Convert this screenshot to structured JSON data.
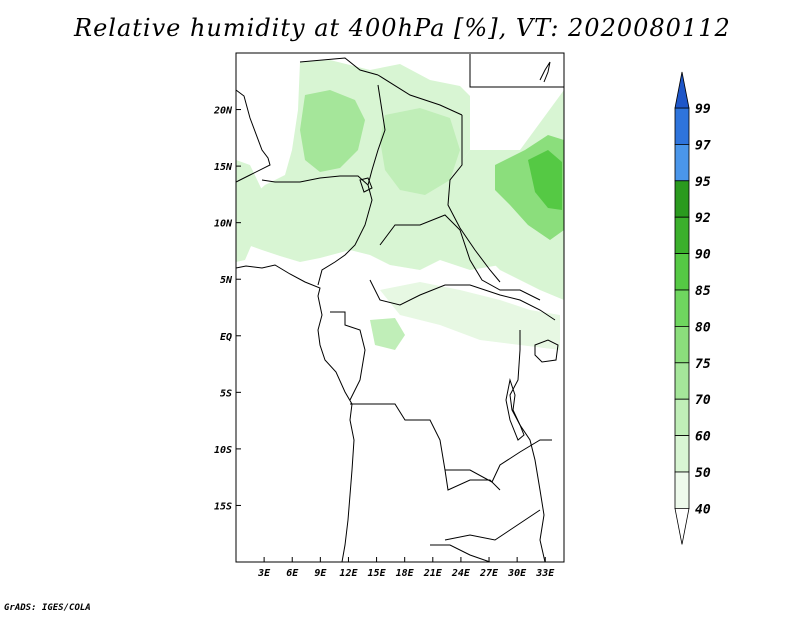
{
  "title": "Relative humidity at 400hPa [%], VT: 2020080112",
  "credit": "GrADS: IGES/COLA",
  "map": {
    "lon_ticks": [
      "3E",
      "6E",
      "9E",
      "12E",
      "15E",
      "18E",
      "21E",
      "24E",
      "27E",
      "30E",
      "33E"
    ],
    "lat_ticks": [
      "20N",
      "15N",
      "10N",
      "5N",
      "EQ",
      "5S",
      "10S",
      "15S"
    ],
    "lon_values": [
      3,
      6,
      9,
      12,
      15,
      18,
      21,
      24,
      27,
      30,
      33
    ],
    "lat_values": [
      20,
      15,
      10,
      5,
      0,
      -5,
      -10,
      -15
    ],
    "lon_range": [
      0,
      35
    ],
    "lat_range": [
      -20,
      25
    ]
  },
  "colorbar": {
    "labels": [
      "40",
      "50",
      "60",
      "70",
      "75",
      "80",
      "85",
      "90",
      "92",
      "95",
      "97",
      "99"
    ],
    "colors": [
      "#eefaec",
      "#d8f5d3",
      "#c0eeb8",
      "#a5e69a",
      "#8bde7c",
      "#6fd65f",
      "#55c944",
      "#3bb02c",
      "#2a9a1e",
      "#4a96ea",
      "#2e74dc",
      "#1e56c8"
    ]
  }
}
